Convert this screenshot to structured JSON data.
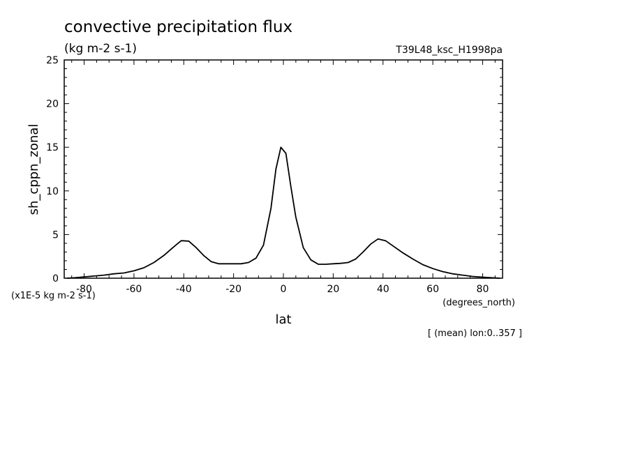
{
  "chart_data": {
    "type": "line",
    "title": "convective precipitation flux",
    "subtitle": "(kg m-2 s-1)",
    "experiment": "T39L48_ksc_H1998pa",
    "ylabel": "sh_cppn_zonal",
    "xlabel": "lat",
    "x_units": "(degrees_north)",
    "y_units": "(x1E-5 kg m-2 s-1)",
    "annotation": "[ (mean) lon:0..357 ]",
    "xlim": [
      -88,
      88
    ],
    "ylim": [
      0,
      25
    ],
    "x_ticks": [
      -80,
      -60,
      -40,
      -20,
      0,
      20,
      40,
      60,
      80
    ],
    "x_tick_labels": [
      "-80",
      "-60",
      "-40",
      "-20",
      "0",
      "20",
      "40",
      "60",
      "80"
    ],
    "y_ticks": [
      0,
      5,
      10,
      15,
      20,
      25
    ],
    "y_tick_labels": [
      "0",
      "5",
      "10",
      "15",
      "20",
      "25"
    ],
    "grid": false,
    "series": [
      {
        "x": [
          -87,
          -84,
          -80,
          -76,
          -72,
          -68,
          -64,
          -60,
          -56,
          -52,
          -48,
          -44,
          -41,
          -38,
          -35,
          -32,
          -29,
          -26,
          -23,
          -20,
          -17,
          -14,
          -11,
          -8,
          -5,
          -3,
          -1,
          1,
          3,
          5,
          8,
          11,
          14,
          17,
          20,
          23,
          26,
          29,
          32,
          35,
          38,
          41,
          44,
          48,
          52,
          56,
          60,
          64,
          68,
          72,
          76,
          80,
          84,
          87
        ],
        "y": [
          0.0,
          0.05,
          0.15,
          0.25,
          0.35,
          0.5,
          0.6,
          0.85,
          1.2,
          1.8,
          2.6,
          3.6,
          4.3,
          4.25,
          3.5,
          2.6,
          1.9,
          1.65,
          1.65,
          1.65,
          1.65,
          1.8,
          2.3,
          3.8,
          8.0,
          12.5,
          15.0,
          14.3,
          10.5,
          7.0,
          3.5,
          2.1,
          1.6,
          1.6,
          1.65,
          1.7,
          1.8,
          2.2,
          3.0,
          3.9,
          4.5,
          4.3,
          3.7,
          2.9,
          2.2,
          1.55,
          1.1,
          0.75,
          0.5,
          0.35,
          0.2,
          0.12,
          0.05,
          0.0
        ]
      }
    ]
  }
}
